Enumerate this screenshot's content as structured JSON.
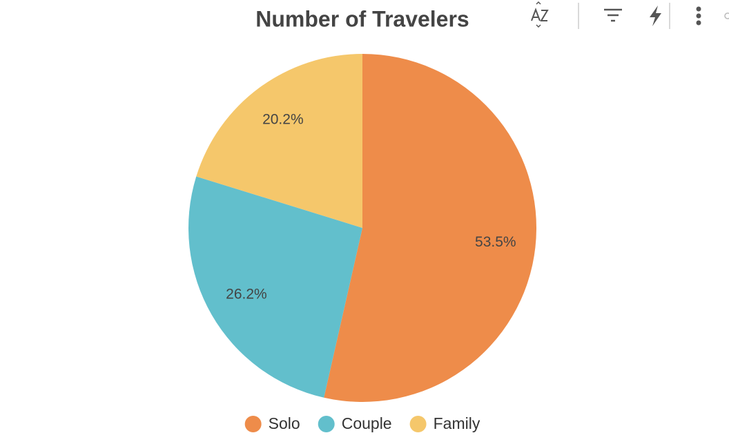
{
  "chart_data": {
    "type": "pie",
    "title": "Number of Travelers",
    "categories": [
      "Solo",
      "Couple",
      "Family"
    ],
    "values": [
      53.5,
      26.2,
      20.2
    ],
    "value_labels": [
      "53.5%",
      "26.2%",
      "20.2%"
    ],
    "colors": [
      "#ee8c4a",
      "#62bfcc",
      "#f5c76b"
    ],
    "legend": "bottom"
  }
}
